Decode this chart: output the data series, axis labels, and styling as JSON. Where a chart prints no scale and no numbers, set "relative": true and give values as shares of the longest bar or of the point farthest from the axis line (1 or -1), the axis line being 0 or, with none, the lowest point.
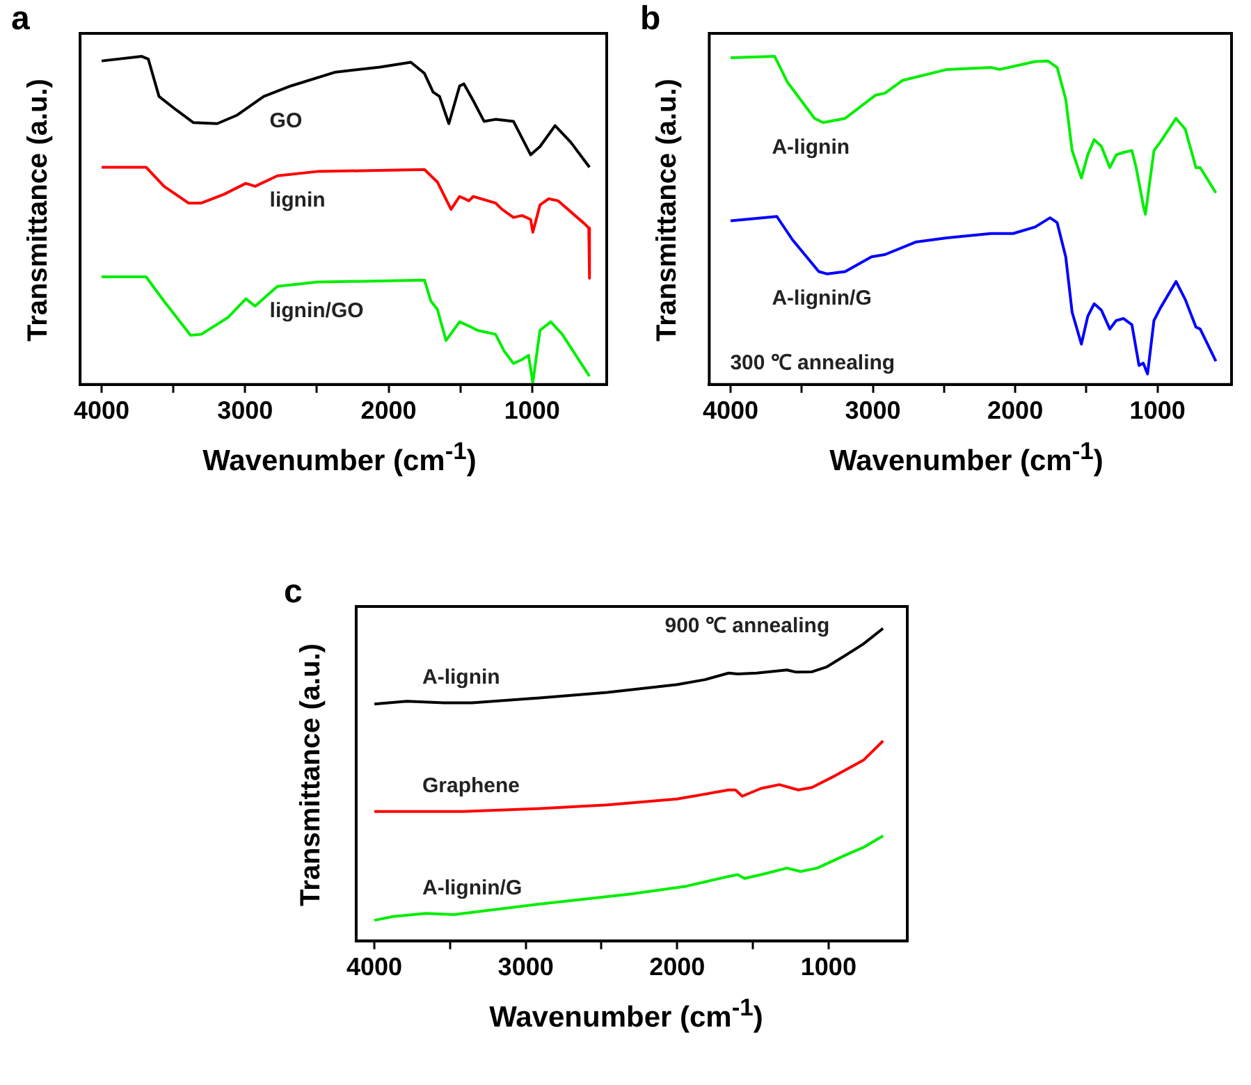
{
  "chart_data": [
    {
      "type": "line",
      "title": "a",
      "xlabel": "Wavenumber (cm$^{-1}$)",
      "ylabel": "Transmittance (a.u.)",
      "relative": true,
      "xlim": [
        4150,
        480
      ],
      "xticks": [
        4000,
        {
          "value": 3500,
          "label": null
        },
        3000,
        {
          "value": 2500,
          "label": null
        },
        2000,
        {
          "value": 1500,
          "label": null
        },
        1000
      ],
      "series": [
        {
          "name": "GO",
          "color": "#000000",
          "x": [
            4000,
            3720,
            3675,
            3600,
            3490,
            3360,
            3195,
            3055,
            2870,
            2680,
            2370,
            2060,
            1845,
            1750,
            1690,
            1645,
            1580,
            1505,
            1475,
            1410,
            1335,
            1255,
            1130,
            1010,
            945,
            840,
            730,
            600
          ],
          "values": [
            0.986,
            1,
            0.992,
            0.878,
            0.84,
            0.798,
            0.795,
            0.821,
            0.878,
            0.91,
            0.952,
            0.967,
            0.982,
            0.948,
            0.891,
            0.878,
            0.795,
            0.91,
            0.916,
            0.865,
            0.802,
            0.808,
            0.802,
            0.7,
            0.725,
            0.789,
            0.738,
            0.662
          ]
        },
        {
          "name": "lignin",
          "color": "#ff0000",
          "x": [
            4000,
            3690,
            3565,
            3395,
            3305,
            3150,
            2995,
            2930,
            2775,
            2500,
            1750,
            1660,
            1565,
            1505,
            1440,
            1410,
            1255,
            1210,
            1130,
            1070,
            1010,
            995,
            945,
            885,
            820,
            635,
            605,
            600
          ],
          "values": [
            0.662,
            0.662,
            0.604,
            0.553,
            0.553,
            0.579,
            0.613,
            0.604,
            0.636,
            0.649,
            0.655,
            0.617,
            0.534,
            0.573,
            0.56,
            0.573,
            0.553,
            0.534,
            0.509,
            0.515,
            0.503,
            0.464,
            0.547,
            0.566,
            0.56,
            0.49,
            0.477,
            0.324
          ]
        },
        {
          "name": "lignin/GO",
          "color": "#00ee00",
          "x": [
            4000,
            3690,
            3565,
            3380,
            3305,
            3120,
            2995,
            2930,
            2775,
            2500,
            1750,
            1705,
            1660,
            1600,
            1505,
            1440,
            1380,
            1255,
            1195,
            1130,
            1070,
            1025,
            995,
            945,
            870,
            790,
            695,
            600
          ],
          "values": [
            0.328,
            0.328,
            0.254,
            0.15,
            0.153,
            0.204,
            0.261,
            0.239,
            0.299,
            0.312,
            0.318,
            0.254,
            0.229,
            0.134,
            0.191,
            0.178,
            0.165,
            0.153,
            0.102,
            0.064,
            0.076,
            0.089,
            0.006,
            0.165,
            0.191,
            0.153,
            0.089,
            0.025
          ]
        }
      ]
    },
    {
      "type": "line",
      "title": "b",
      "xlabel": "Wavenumber (cm$^{-1}$)",
      "ylabel": "Transmittance (a.u.)",
      "relative": true,
      "xlim": [
        4150,
        480
      ],
      "xticks": [
        4000,
        {
          "value": 3500,
          "label": null
        },
        3000,
        {
          "value": 2500,
          "label": null
        },
        2000,
        {
          "value": 1500,
          "label": null
        },
        1000
      ],
      "annotations": [
        "300 ℃ annealing"
      ],
      "series": [
        {
          "name": "A-lignin",
          "color": "#00ee00",
          "x": [
            4000,
            3690,
            3600,
            3410,
            3350,
            3195,
            2980,
            2915,
            2790,
            2480,
            2170,
            2110,
            1860,
            1770,
            1705,
            1645,
            1600,
            1535,
            1490,
            1445,
            1395,
            1335,
            1290,
            1240,
            1180,
            1150,
            1100,
            1085,
            1025,
            980,
            870,
            805,
            730,
            700,
            590
          ],
          "values": [
            0.996,
            1,
            0.921,
            0.811,
            0.798,
            0.811,
            0.882,
            0.888,
            0.927,
            0.96,
            0.966,
            0.96,
            0.984,
            0.986,
            0.966,
            0.869,
            0.713,
            0.629,
            0.7,
            0.746,
            0.726,
            0.661,
            0.7,
            0.707,
            0.713,
            0.661,
            0.545,
            0.519,
            0.713,
            0.739,
            0.811,
            0.778,
            0.661,
            0.661,
            0.584
          ]
        },
        {
          "name": "A-lignin/G",
          "color": "#0000ff",
          "x": [
            4000,
            3675,
            3565,
            3380,
            3320,
            3195,
            3010,
            2915,
            2700,
            2480,
            2170,
            2015,
            1860,
            1755,
            1705,
            1645,
            1600,
            1535,
            1490,
            1445,
            1395,
            1335,
            1290,
            1240,
            1180,
            1130,
            1100,
            1070,
            1025,
            980,
            870,
            805,
            730,
            700,
            590
          ],
          "values": [
            0.499,
            0.512,
            0.441,
            0.344,
            0.337,
            0.344,
            0.389,
            0.396,
            0.434,
            0.447,
            0.46,
            0.46,
            0.48,
            0.508,
            0.493,
            0.389,
            0.22,
            0.123,
            0.208,
            0.246,
            0.227,
            0.169,
            0.195,
            0.201,
            0.182,
            0.058,
            0.065,
            0.032,
            0.195,
            0.233,
            0.314,
            0.259,
            0.175,
            0.169,
            0.071
          ]
        }
      ]
    },
    {
      "type": "line",
      "title": "c",
      "xlabel": "Wavenumber (cm$^{-1}$)",
      "ylabel": "Transmittance (a.u.)",
      "relative": true,
      "xlim": [
        4120,
        480
      ],
      "xticks": [
        4000,
        {
          "value": 3500,
          "label": null
        },
        3000,
        {
          "value": 2500,
          "label": null
        },
        2000,
        {
          "value": 1500,
          "label": null
        },
        1000
      ],
      "annotations": [
        "900 ℃ annealing"
      ],
      "series": [
        {
          "name": "A-lignin",
          "color": "#000000",
          "x": [
            4000,
            3785,
            3540,
            3355,
            2925,
            2460,
            2000,
            1815,
            1660,
            1600,
            1475,
            1275,
            1215,
            1110,
            1015,
            890,
            770,
            640
          ],
          "values": [
            0.758,
            0.767,
            0.762,
            0.762,
            0.777,
            0.795,
            0.82,
            0.836,
            0.857,
            0.854,
            0.857,
            0.867,
            0.86,
            0.861,
            0.876,
            0.913,
            0.95,
            1
          ]
        },
        {
          "name": "Graphene",
          "color": "#ff0000",
          "x": [
            4000,
            3540,
            3415,
            2925,
            2460,
            2000,
            1660,
            1615,
            1570,
            1445,
            1325,
            1200,
            1110,
            955,
            770,
            640
          ],
          "values": [
            0.414,
            0.414,
            0.414,
            0.423,
            0.435,
            0.454,
            0.483,
            0.483,
            0.463,
            0.488,
            0.5,
            0.483,
            0.491,
            0.529,
            0.578,
            0.64
          ]
        },
        {
          "name": "A-lignin/G",
          "color": "#00ee00",
          "x": [
            4000,
            3875,
            3660,
            3475,
            2925,
            2310,
            1940,
            1690,
            1600,
            1555,
            1445,
            1275,
            1185,
            1075,
            890,
            770,
            640
          ],
          "values": [
            0.066,
            0.078,
            0.088,
            0.084,
            0.117,
            0.15,
            0.175,
            0.203,
            0.212,
            0.2,
            0.212,
            0.233,
            0.222,
            0.233,
            0.274,
            0.299,
            0.336
          ]
        }
      ]
    }
  ]
}
